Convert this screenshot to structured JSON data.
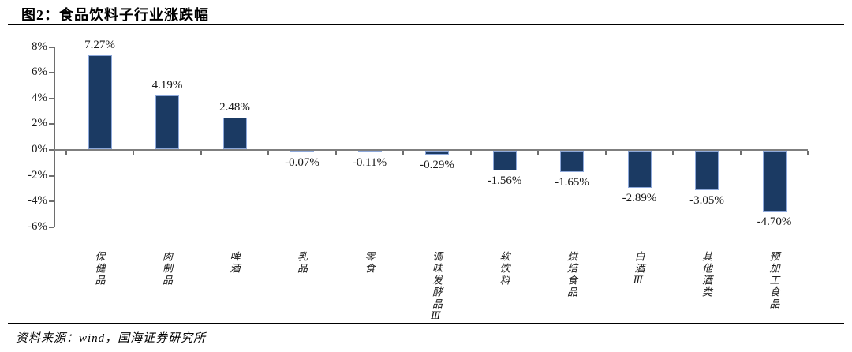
{
  "figure": {
    "title": "图2：食品饮料子行业涨跌幅",
    "source": "资料来源：wind，国海证券研究所"
  },
  "chart_data": {
    "type": "bar",
    "title": "食品饮料子行业涨跌幅",
    "categories": [
      "保健品",
      "肉制品",
      "啤酒",
      "乳品",
      "零食",
      "调味发酵品Ⅲ",
      "软饮料",
      "烘焙食品",
      "白酒Ⅲ",
      "其他酒类",
      "预加工食品"
    ],
    "values": [
      7.27,
      4.19,
      2.48,
      -0.07,
      -0.11,
      -0.29,
      -1.56,
      -1.65,
      -2.89,
      -3.05,
      -4.7
    ],
    "value_labels": [
      "7.27%",
      "4.19%",
      "2.48%",
      "-0.07%",
      "-0.11%",
      "-0.29%",
      "-1.56%",
      "-1.65%",
      "-2.89%",
      "-3.05%",
      "-4.70%"
    ],
    "y_tick_labels": [
      "8%",
      "6%",
      "4%",
      "2%",
      "0%",
      "-2%",
      "-4%",
      "-6%"
    ],
    "y_tick_values": [
      8,
      6,
      4,
      2,
      0,
      -2,
      -4,
      -6
    ],
    "ylim": [
      -6,
      8
    ],
    "xlabel": "",
    "ylabel": "",
    "grid": false,
    "legend_position": "none",
    "bar_color": "#1b3a63",
    "bar_border_color": "#8ea9db",
    "axis_color": "#7f7f7f"
  }
}
